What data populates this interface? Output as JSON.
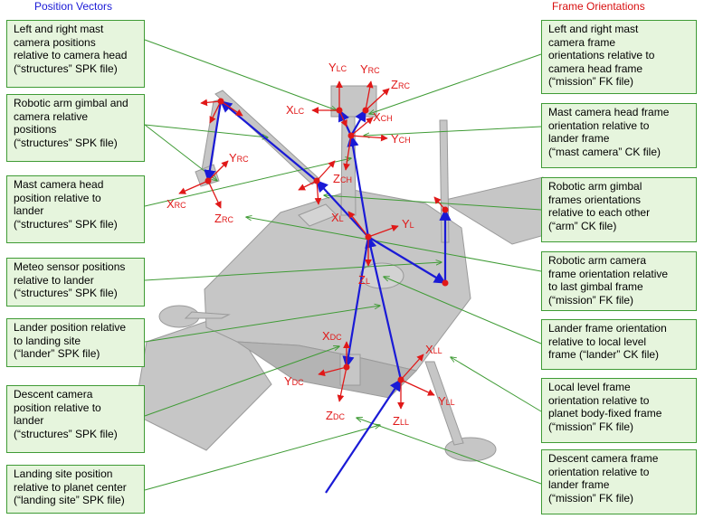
{
  "headers": {
    "left": "Position Vectors",
    "right": "Frame Orientations"
  },
  "left_boxes": [
    "Left and right mast\ncamera positions\nrelative to camera head\n(“structures” SPK file)",
    "Robotic arm gimbal and\ncamera relative\npositions\n(“structures” SPK file)",
    "Mast camera head\nposition relative to\nlander\n(“structures” SPK file)",
    "Meteo sensor positions\nrelative to lander\n(“structures” SPK file)",
    "Lander position relative\nto landing site\n(“lander” SPK file)",
    "Descent camera\nposition relative to\nlander\n(“structures” SPK file)",
    "Landing site position\nrelative to planet center\n(“landing site” SPK file)"
  ],
  "right_boxes": [
    "Left and right mast\ncamera frame\norientations relative to\ncamera head frame\n(“mission” FK file)",
    "Mast camera head frame\norientation relative to\nlander frame\n(“mast camera” CK file)",
    "Robotic arm gimbal\nframes orientations\nrelative to each other\n(“arm” CK file)",
    "Robotic arm camera\nframe orientation relative\nto last gimbal frame\n(“mission” FK file)",
    "Lander frame orientation\nrelative to local level\nframe (“lander” CK file)",
    "Local level frame\norientation relative to\nplanet body-fixed frame\n(“mission” FK file)",
    "Descent camera frame\norientation relative to\nlander frame\n(“mission” FK file)"
  ],
  "axis_labels": [
    {
      "main": "Y",
      "sub": "LC"
    },
    {
      "main": "Y",
      "sub": "RC"
    },
    {
      "main": "Z",
      "sub": "RC"
    },
    {
      "main": "X",
      "sub": "LC"
    },
    {
      "main": "X",
      "sub": "CH"
    },
    {
      "main": "Y",
      "sub": "CH"
    },
    {
      "main": "Z",
      "sub": "CH"
    },
    {
      "main": "Y",
      "sub": "RC"
    },
    {
      "main": "X",
      "sub": "RC"
    },
    {
      "main": "Z",
      "sub": "RC"
    },
    {
      "main": "X",
      "sub": "L"
    },
    {
      "main": "Y",
      "sub": "L"
    },
    {
      "main": "Z",
      "sub": "L"
    },
    {
      "main": "X",
      "sub": "DC"
    },
    {
      "main": "Y",
      "sub": "DC"
    },
    {
      "main": "Z",
      "sub": "DC"
    },
    {
      "main": "X",
      "sub": "LL"
    },
    {
      "main": "Y",
      "sub": "LL"
    },
    {
      "main": "Z",
      "sub": "LL"
    }
  ],
  "colors": {
    "callout_fill": "#e6f5dd",
    "callout_border": "#3f9b35",
    "position_vector": "#1a1ad6",
    "frame_axis": "#e01818",
    "lander_body": "#c6c6c6"
  }
}
